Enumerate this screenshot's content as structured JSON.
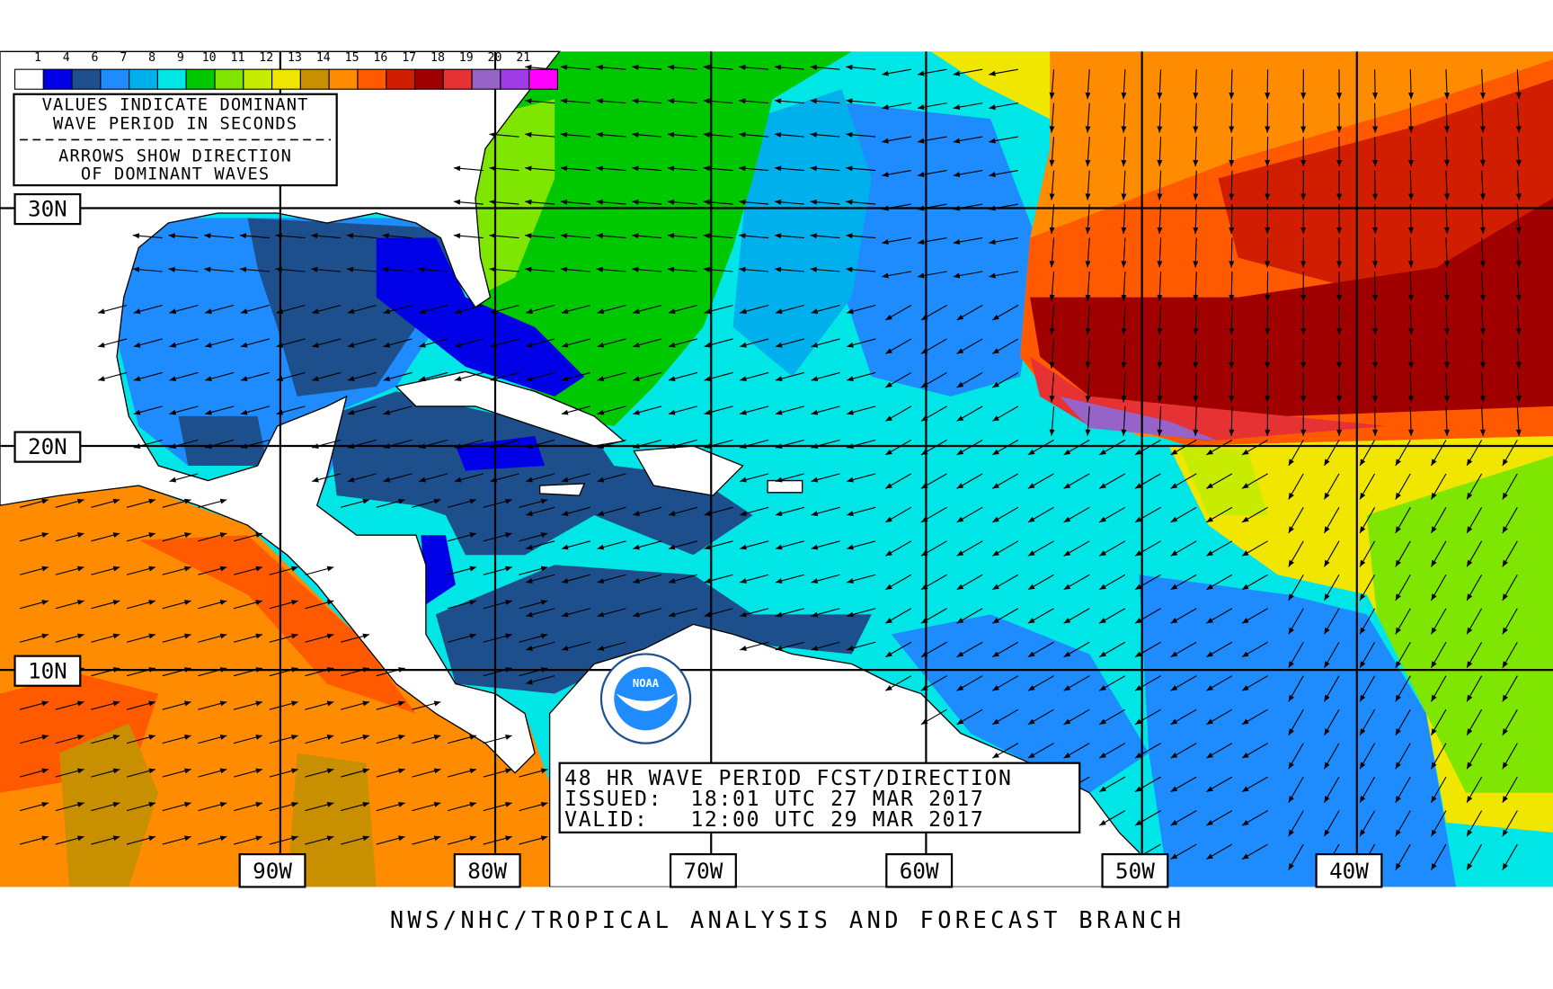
{
  "legend": {
    "labels": [
      "1",
      "4",
      "6",
      "7",
      "8",
      "9",
      "10",
      "11",
      "12",
      "13",
      "14",
      "15",
      "16",
      "17",
      "18",
      "19",
      "20",
      "21"
    ],
    "colors": [
      "#ffffff",
      "#0000e6",
      "#1c4f8c",
      "#1e8cff",
      "#00b0ec",
      "#00e6e6",
      "#00c800",
      "#7ee600",
      "#c8ec00",
      "#f0e600",
      "#c89000",
      "#ff8c00",
      "#ff5a00",
      "#d21e00",
      "#a00000",
      "#e63232",
      "#9664c8",
      "#a03ce6",
      "#ff00ff"
    ]
  },
  "notes": [
    "VALUES INDICATE DOMINANT",
    "WAVE PERIOD IN SECONDS",
    "ARROWS SHOW DIRECTION",
    "OF DOMINANT WAVES"
  ],
  "latitudes": [
    "30N",
    "20N",
    "10N"
  ],
  "longitudes": [
    "90W",
    "80W",
    "70W",
    "60W",
    "50W",
    "40W"
  ],
  "forecast_box": [
    "48 HR WAVE PERIOD FCST/DIRECTION",
    "ISSUED:  18:01 UTC 27 MAR 2017",
    "VALID:   12:00 UTC 29 MAR 2017"
  ],
  "logo": "NOAA",
  "footer": "NWS/NHC/TROPICAL ANALYSIS AND FORECAST BRANCH"
}
